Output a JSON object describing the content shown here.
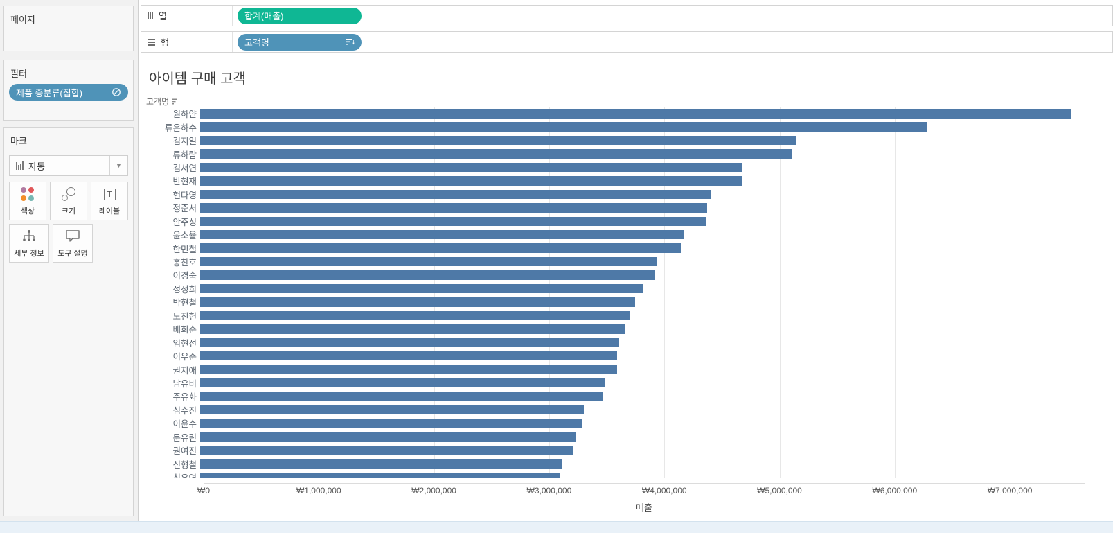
{
  "sidebar": {
    "pages": {
      "title": "페이지"
    },
    "filters": {
      "title": "필터",
      "pills": [
        {
          "label": "제품 중분류(집합)",
          "icon": "set-icon"
        }
      ]
    },
    "marks": {
      "title": "마크",
      "mark_type": {
        "label": "자동",
        "icon": "bar-chart-icon"
      },
      "buttons": [
        {
          "label": "색상",
          "icon": "color-icon"
        },
        {
          "label": "크기",
          "icon": "size-icon"
        },
        {
          "label": "레이블",
          "icon": "label-icon"
        },
        {
          "label": "세부 정보",
          "icon": "detail-icon"
        },
        {
          "label": "도구 설명",
          "icon": "tooltip-icon"
        }
      ]
    }
  },
  "shelves": {
    "columns": {
      "label": "열",
      "pill": "합계(매출)"
    },
    "rows": {
      "label": "행",
      "pill": "고객명",
      "pill_icon": "sort-descending-icon"
    }
  },
  "chart_data": {
    "type": "bar",
    "orientation": "horizontal",
    "title": "아이템 구매 고객",
    "row_header": "고객명",
    "xlabel": "매출",
    "bar_color": "#4e79a7",
    "grid": true,
    "xlim": [
      0,
      7650000
    ],
    "x_ticks": {
      "values": [
        0,
        1000000,
        2000000,
        3000000,
        4000000,
        5000000,
        6000000,
        7000000
      ],
      "labels": [
        "₩0",
        "₩1,000,000",
        "₩2,000,000",
        "₩3,000,000",
        "₩4,000,000",
        "₩5,000,000",
        "₩6,000,000",
        "₩7,000,000"
      ]
    },
    "categories": [
      "원하얀",
      "류은하수",
      "김지일",
      "류하람",
      "김서연",
      "반현재",
      "현다영",
      "정준서",
      "안주성",
      "윤소율",
      "한민철",
      "홍찬호",
      "이경숙",
      "성정희",
      "박현철",
      "노진헌",
      "배희순",
      "임현선",
      "이우준",
      "권지애",
      "남유비",
      "주유화",
      "심수진",
      "이윤수",
      "문유린",
      "권여진",
      "신형철",
      "최유연"
    ],
    "values": [
      7566000,
      6310000,
      5169000,
      5139000,
      4710000,
      4704000,
      4429000,
      4403000,
      4387000,
      4201000,
      4171000,
      3968000,
      3948000,
      3840000,
      3774000,
      3731000,
      3694000,
      3639000,
      3622000,
      3621000,
      3517000,
      3494000,
      3331000,
      3316000,
      3266000,
      3244000,
      3140000,
      3128000
    ],
    "last_row_partially_clipped": true
  },
  "colors": {
    "bar": "#4e79a7",
    "pill_green": "#0fb794",
    "pill_blue": "#4f93b8",
    "color_icon_dots": [
      "#b07aa1",
      "#e15759",
      "#f28e2b",
      "#76b7b2"
    ]
  }
}
